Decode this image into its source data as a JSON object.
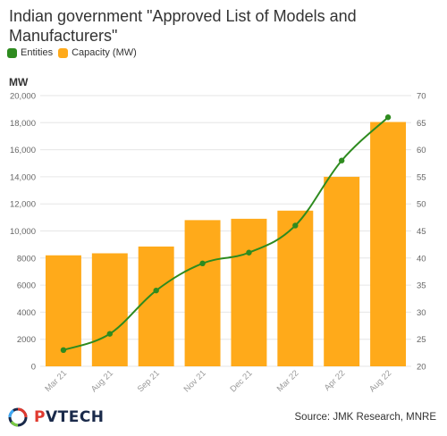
{
  "title": "Indian government \"Approved List of Models and Manufacturers\"",
  "source": "Source: JMK Research, MNRE",
  "logo": {
    "prefix": "P",
    "rest": "VTECH"
  },
  "colors": {
    "bars": "#FFAA1A",
    "line": "#2E8B1F",
    "grid": "#e6e6e6"
  },
  "legend": [
    {
      "label": "Entities",
      "color": "#2E8B1F",
      "icon": "square-swatch"
    },
    {
      "label": "Capacity (MW)",
      "color": "#FFAA1A",
      "icon": "square-swatch"
    }
  ],
  "chart_data": {
    "type": "bar",
    "title": "Indian government \"Approved List of Models and Manufacturers\"",
    "categories": [
      "Mar 21",
      "Aug 21",
      "Sep 21",
      "Nov 21",
      "Dec 21",
      "Mar 22",
      "Apr 22",
      "Aug 22"
    ],
    "series": [
      {
        "name": "Capacity (MW)",
        "type": "bar",
        "axis": "left",
        "values": [
          8200,
          8350,
          8850,
          10800,
          10900,
          11500,
          14000,
          18050
        ]
      },
      {
        "name": "Entities",
        "type": "line",
        "axis": "right",
        "values": [
          23,
          26,
          34,
          39,
          41,
          46,
          58,
          66
        ]
      }
    ],
    "ylabel": "MW",
    "ylim": [
      0,
      20000
    ],
    "yticks": [
      0,
      2000,
      4000,
      6000,
      8000,
      10000,
      12000,
      14000,
      16000,
      18000,
      20000
    ],
    "ytick_labels": [
      "0",
      "2000",
      "4000",
      "6000",
      "8000",
      "10,000",
      "12,000",
      "14,000",
      "16,000",
      "18,000",
      "20,000"
    ],
    "y2lim": [
      20,
      70
    ],
    "y2ticks": [
      "20",
      "25",
      "30",
      "35",
      "40",
      "45",
      "50",
      "55",
      "60",
      "65",
      "70"
    ],
    "grid": true,
    "legend_position": "top-left"
  }
}
